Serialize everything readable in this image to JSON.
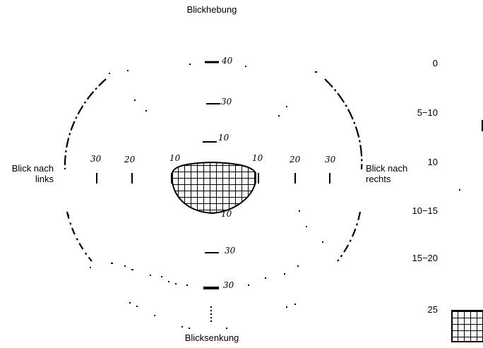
{
  "labels": {
    "top": "Blickhebung",
    "bottom": "Blicksenkung",
    "left_line1": "Blick nach",
    "left_line2": "links",
    "right_line1": "Blick nach",
    "right_line2": "rechts"
  },
  "vertical_degrees": [
    "40",
    "30",
    "10",
    "10",
    "30",
    "30"
  ],
  "horizontal_degrees": [
    "30",
    "20",
    "10",
    "10",
    "20",
    "30"
  ],
  "side_scale": [
    "0",
    "5−10",
    "10",
    "10−15",
    "15−20",
    "25"
  ]
}
